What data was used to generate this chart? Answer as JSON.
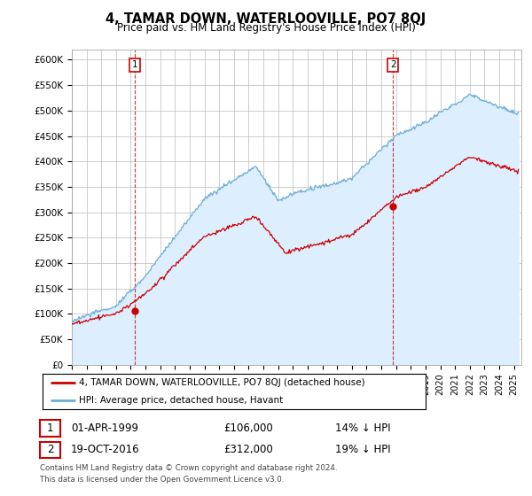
{
  "title": "4, TAMAR DOWN, WATERLOOVILLE, PO7 8QJ",
  "subtitle": "Price paid vs. HM Land Registry's House Price Index (HPI)",
  "ylabel_ticks": [
    "£0",
    "£50K",
    "£100K",
    "£150K",
    "£200K",
    "£250K",
    "£300K",
    "£350K",
    "£400K",
    "£450K",
    "£500K",
    "£550K",
    "£600K"
  ],
  "ytick_values": [
    0,
    50000,
    100000,
    150000,
    200000,
    250000,
    300000,
    350000,
    400000,
    450000,
    500000,
    550000,
    600000
  ],
  "ylim": [
    0,
    620000
  ],
  "xlim_start": 1995.0,
  "xlim_end": 2025.5,
  "hpi_color": "#6baed6",
  "hpi_fill_color": "#ddeeff",
  "price_color": "#cc0000",
  "marker1_year": 1999.25,
  "marker1_price": 106000,
  "marker2_year": 2016.8,
  "marker2_price": 312000,
  "legend_entry1": "4, TAMAR DOWN, WATERLOOVILLE, PO7 8QJ (detached house)",
  "legend_entry2": "HPI: Average price, detached house, Havant",
  "table_row1_label": "1",
  "table_row1_date": "01-APR-1999",
  "table_row1_price": "£106,000",
  "table_row1_change": "14% ↓ HPI",
  "table_row2_label": "2",
  "table_row2_date": "19-OCT-2016",
  "table_row2_price": "£312,000",
  "table_row2_change": "19% ↓ HPI",
  "footer_line1": "Contains HM Land Registry data © Crown copyright and database right 2024.",
  "footer_line2": "This data is licensed under the Open Government Licence v3.0.",
  "background_color": "#ffffff",
  "grid_color": "#cccccc"
}
